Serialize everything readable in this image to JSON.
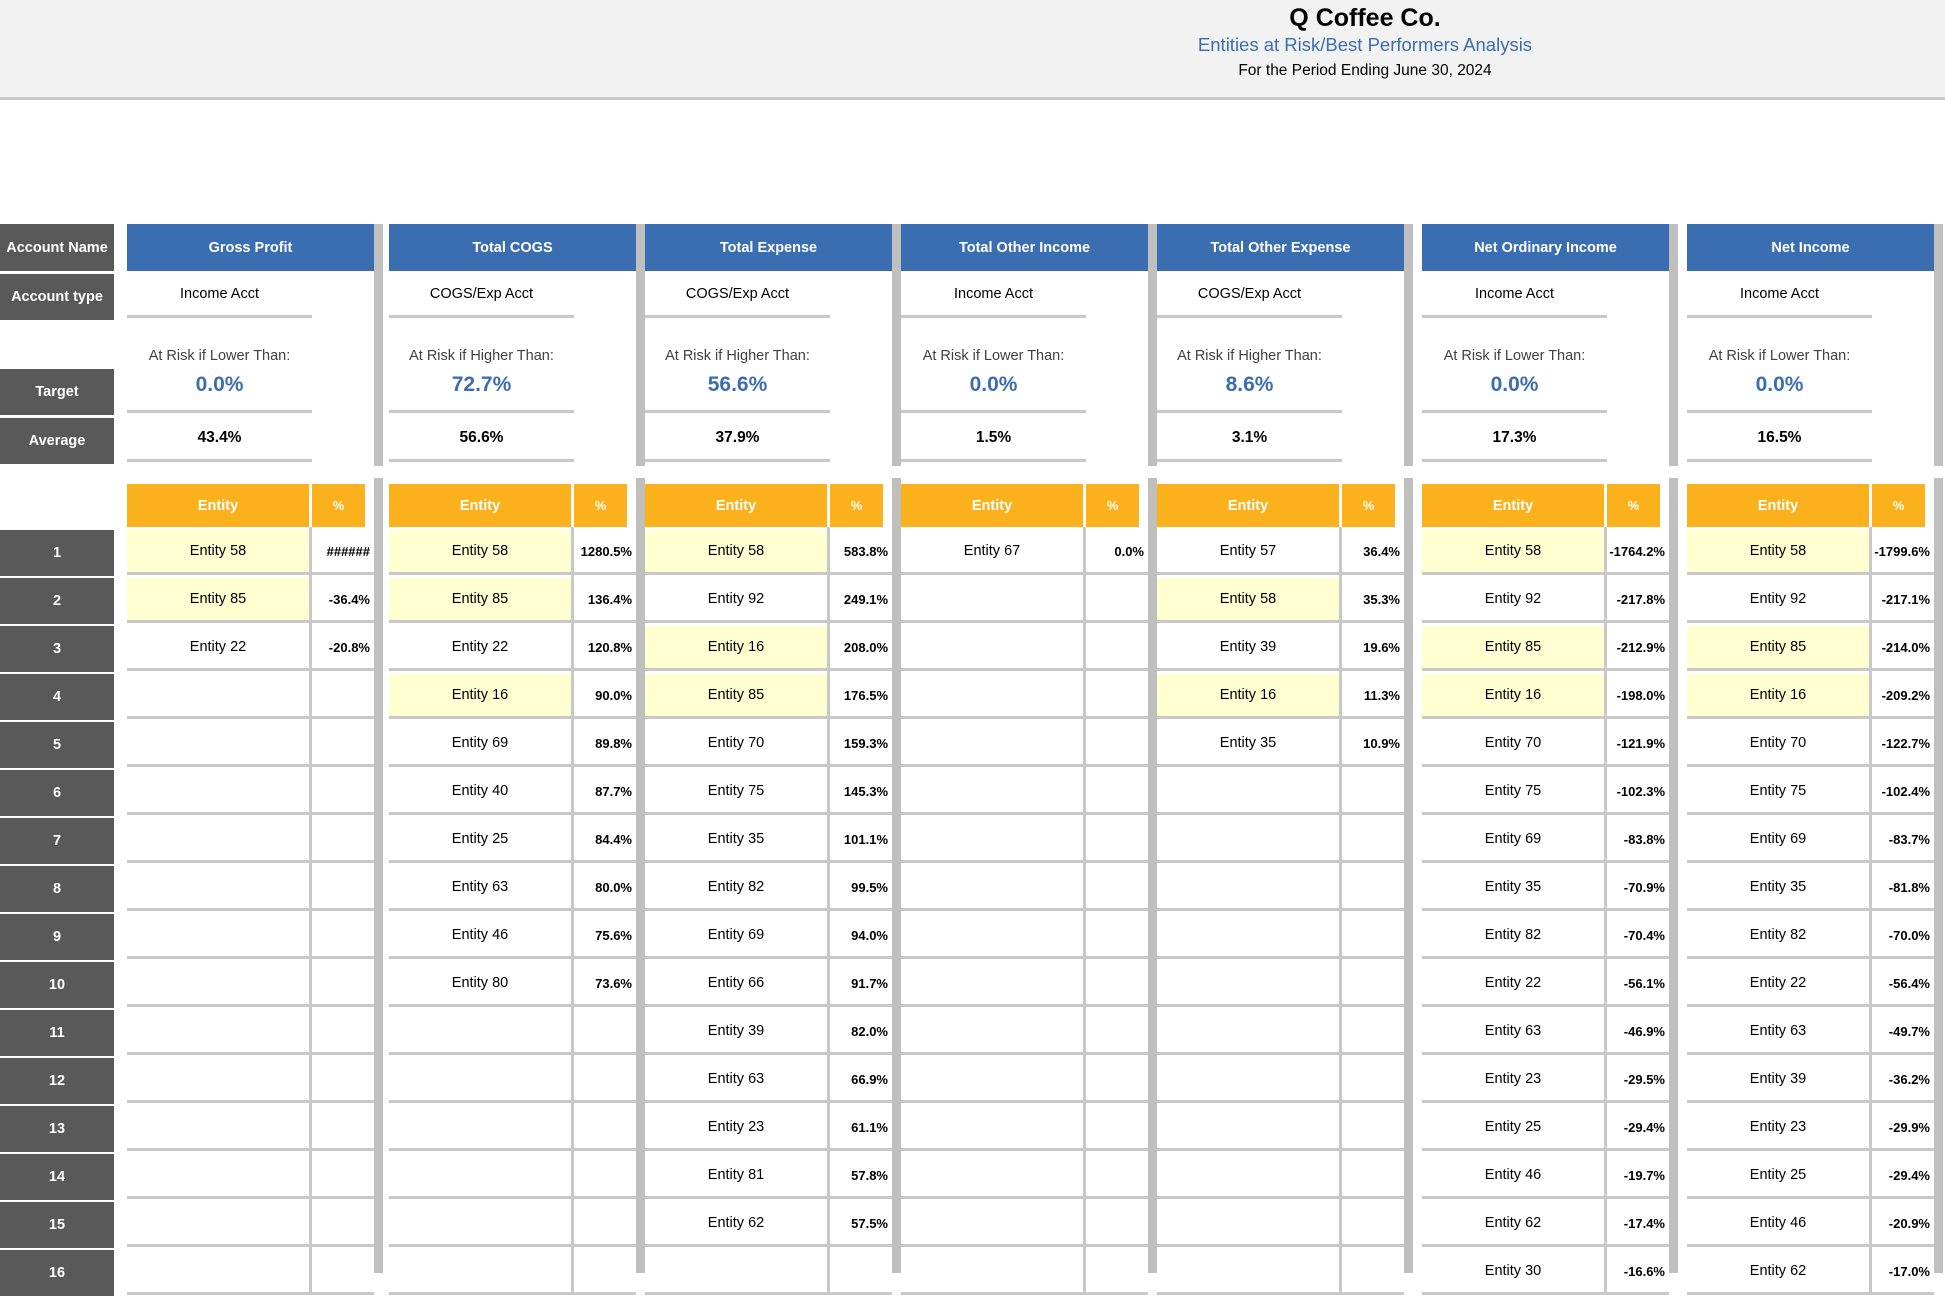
{
  "header": {
    "company": "Q Coffee Co.",
    "subtitle": "Entities at Risk/Best Performers Analysis",
    "period": "For the Period Ending June 30, 2024"
  },
  "labels": {
    "account_name": "Account Name",
    "account_type": "Account type",
    "target": "Target",
    "average": "Average"
  },
  "row_numbers": [
    "1",
    "2",
    "3",
    "4",
    "5",
    "6",
    "7",
    "8",
    "9",
    "10",
    "11",
    "12",
    "13",
    "14",
    "15",
    "16"
  ],
  "colors": {
    "header_blue": "#3b6db1",
    "entity_orange": "#fbb11b",
    "label_gray": "#595959",
    "highlight_yellow": "#ffffd1"
  },
  "accounts": [
    {
      "name": "Gross Profit",
      "type": "Income Acct",
      "risk_label": "At Risk if Lower Than:",
      "target": "0.0%",
      "average": "43.4%",
      "entity_header": "Entity",
      "pct_header": "%",
      "rows": [
        {
          "entity": "Entity 58",
          "pct": "######",
          "hl": true
        },
        {
          "entity": "Entity 85",
          "pct": "-36.4%",
          "hl": true
        },
        {
          "entity": "Entity 22",
          "pct": "-20.8%",
          "hl": false
        }
      ]
    },
    {
      "name": "Total COGS",
      "type": "COGS/Exp Acct",
      "risk_label": "At Risk if Higher Than:",
      "target": "72.7%",
      "average": "56.6%",
      "entity_header": "Entity",
      "pct_header": "%",
      "rows": [
        {
          "entity": "Entity 58",
          "pct": "1280.5%",
          "hl": true
        },
        {
          "entity": "Entity 85",
          "pct": "136.4%",
          "hl": true
        },
        {
          "entity": "Entity 22",
          "pct": "120.8%",
          "hl": false
        },
        {
          "entity": "Entity 16",
          "pct": "90.0%",
          "hl": true
        },
        {
          "entity": "Entity 69",
          "pct": "89.8%",
          "hl": false
        },
        {
          "entity": "Entity 40",
          "pct": "87.7%",
          "hl": false
        },
        {
          "entity": "Entity 25",
          "pct": "84.4%",
          "hl": false
        },
        {
          "entity": "Entity 63",
          "pct": "80.0%",
          "hl": false
        },
        {
          "entity": "Entity 46",
          "pct": "75.6%",
          "hl": false
        },
        {
          "entity": "Entity 80",
          "pct": "73.6%",
          "hl": false
        }
      ]
    },
    {
      "name": "Total Expense",
      "type": "COGS/Exp Acct",
      "risk_label": "At Risk if Higher Than:",
      "target": "56.6%",
      "average": "37.9%",
      "entity_header": "Entity",
      "pct_header": "%",
      "rows": [
        {
          "entity": "Entity 58",
          "pct": "583.8%",
          "hl": true
        },
        {
          "entity": "Entity 92",
          "pct": "249.1%",
          "hl": false
        },
        {
          "entity": "Entity 16",
          "pct": "208.0%",
          "hl": true
        },
        {
          "entity": "Entity 85",
          "pct": "176.5%",
          "hl": true
        },
        {
          "entity": "Entity 70",
          "pct": "159.3%",
          "hl": false
        },
        {
          "entity": "Entity 75",
          "pct": "145.3%",
          "hl": false
        },
        {
          "entity": "Entity 35",
          "pct": "101.1%",
          "hl": false
        },
        {
          "entity": "Entity 82",
          "pct": "99.5%",
          "hl": false
        },
        {
          "entity": "Entity 69",
          "pct": "94.0%",
          "hl": false
        },
        {
          "entity": "Entity 66",
          "pct": "91.7%",
          "hl": false
        },
        {
          "entity": "Entity 39",
          "pct": "82.0%",
          "hl": false
        },
        {
          "entity": "Entity 63",
          "pct": "66.9%",
          "hl": false
        },
        {
          "entity": "Entity 23",
          "pct": "61.1%",
          "hl": false
        },
        {
          "entity": "Entity 81",
          "pct": "57.8%",
          "hl": false
        },
        {
          "entity": "Entity 62",
          "pct": "57.5%",
          "hl": false
        }
      ]
    },
    {
      "name": "Total Other Income",
      "type": "Income Acct",
      "risk_label": "At Risk if Lower Than:",
      "target": "0.0%",
      "average": "1.5%",
      "entity_header": "Entity",
      "pct_header": "%",
      "rows": [
        {
          "entity": "Entity 67",
          "pct": "0.0%",
          "hl": false
        }
      ]
    },
    {
      "name": "Total Other Expense",
      "type": "COGS/Exp Acct",
      "risk_label": "At Risk if Higher Than:",
      "target": "8.6%",
      "average": "3.1%",
      "entity_header": "Entity",
      "pct_header": "%",
      "rows": [
        {
          "entity": "Entity 57",
          "pct": "36.4%",
          "hl": false
        },
        {
          "entity": "Entity 58",
          "pct": "35.3%",
          "hl": true
        },
        {
          "entity": "Entity 39",
          "pct": "19.6%",
          "hl": false
        },
        {
          "entity": "Entity 16",
          "pct": "11.3%",
          "hl": true
        },
        {
          "entity": "Entity 35",
          "pct": "10.9%",
          "hl": false
        }
      ]
    },
    {
      "name": "Net Ordinary Income",
      "type": "Income Acct",
      "risk_label": "At Risk if Lower Than:",
      "target": "0.0%",
      "average": "17.3%",
      "entity_header": "Entity",
      "pct_header": "%",
      "rows": [
        {
          "entity": "Entity 58",
          "pct": "-1764.2%",
          "hl": true
        },
        {
          "entity": "Entity 92",
          "pct": "-217.8%",
          "hl": false
        },
        {
          "entity": "Entity 85",
          "pct": "-212.9%",
          "hl": true
        },
        {
          "entity": "Entity 16",
          "pct": "-198.0%",
          "hl": true
        },
        {
          "entity": "Entity 70",
          "pct": "-121.9%",
          "hl": false
        },
        {
          "entity": "Entity 75",
          "pct": "-102.3%",
          "hl": false
        },
        {
          "entity": "Entity 69",
          "pct": "-83.8%",
          "hl": false
        },
        {
          "entity": "Entity 35",
          "pct": "-70.9%",
          "hl": false
        },
        {
          "entity": "Entity 82",
          "pct": "-70.4%",
          "hl": false
        },
        {
          "entity": "Entity 22",
          "pct": "-56.1%",
          "hl": false
        },
        {
          "entity": "Entity 63",
          "pct": "-46.9%",
          "hl": false
        },
        {
          "entity": "Entity 23",
          "pct": "-29.5%",
          "hl": false
        },
        {
          "entity": "Entity 25",
          "pct": "-29.4%",
          "hl": false
        },
        {
          "entity": "Entity 46",
          "pct": "-19.7%",
          "hl": false
        },
        {
          "entity": "Entity 62",
          "pct": "-17.4%",
          "hl": false
        },
        {
          "entity": "Entity 30",
          "pct": "-16.6%",
          "hl": false
        }
      ]
    },
    {
      "name": "Net Income",
      "type": "Income Acct",
      "risk_label": "At Risk if Lower Than:",
      "target": "0.0%",
      "average": "16.5%",
      "entity_header": "Entity",
      "pct_header": "%",
      "rows": [
        {
          "entity": "Entity 58",
          "pct": "-1799.6%",
          "hl": true
        },
        {
          "entity": "Entity 92",
          "pct": "-217.1%",
          "hl": false
        },
        {
          "entity": "Entity 85",
          "pct": "-214.0%",
          "hl": true
        },
        {
          "entity": "Entity 16",
          "pct": "-209.2%",
          "hl": true
        },
        {
          "entity": "Entity 70",
          "pct": "-122.7%",
          "hl": false
        },
        {
          "entity": "Entity 75",
          "pct": "-102.4%",
          "hl": false
        },
        {
          "entity": "Entity 69",
          "pct": "-83.7%",
          "hl": false
        },
        {
          "entity": "Entity 35",
          "pct": "-81.8%",
          "hl": false
        },
        {
          "entity": "Entity 82",
          "pct": "-70.0%",
          "hl": false
        },
        {
          "entity": "Entity 22",
          "pct": "-56.4%",
          "hl": false
        },
        {
          "entity": "Entity 63",
          "pct": "-49.7%",
          "hl": false
        },
        {
          "entity": "Entity 39",
          "pct": "-36.2%",
          "hl": false
        },
        {
          "entity": "Entity 23",
          "pct": "-29.9%",
          "hl": false
        },
        {
          "entity": "Entity 25",
          "pct": "-29.4%",
          "hl": false
        },
        {
          "entity": "Entity 46",
          "pct": "-20.9%",
          "hl": false
        },
        {
          "entity": "Entity 62",
          "pct": "-17.0%",
          "hl": false
        }
      ]
    }
  ]
}
